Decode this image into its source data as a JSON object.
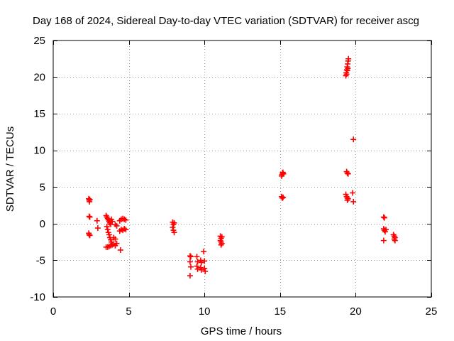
{
  "chart_data": {
    "type": "scatter",
    "title": "Day 168 of 2024, Sidereal Day-to-day VTEC variation (SDTVAR) for receiver ascg",
    "xlabel": "GPS time / hours",
    "ylabel": "SDTVAR / TECUs",
    "xlim": [
      0,
      25
    ],
    "ylim": [
      -10,
      25
    ],
    "xticks": [
      0,
      5,
      10,
      15,
      20,
      25
    ],
    "yticks": [
      -10,
      -5,
      0,
      5,
      10,
      15,
      20,
      25
    ],
    "xtick_labels": [
      "0",
      "5",
      "10",
      "15",
      "20",
      "25"
    ],
    "ytick_labels": [
      "-10",
      "-5",
      "0",
      "5",
      "10",
      "15",
      "20",
      "25"
    ],
    "grid": true,
    "marker": "+",
    "color": "#ff0000",
    "series": [
      {
        "name": "SDTVAR",
        "points": [
          [
            2.35,
            3.4
          ],
          [
            2.38,
            3.2
          ],
          [
            2.4,
            3.0
          ],
          [
            2.42,
            3.3
          ],
          [
            2.38,
            1.0
          ],
          [
            2.42,
            0.9
          ],
          [
            2.35,
            -1.3
          ],
          [
            2.38,
            -1.5
          ],
          [
            2.42,
            -1.6
          ],
          [
            2.9,
            0.4
          ],
          [
            2.95,
            -0.6
          ],
          [
            3.5,
            1.1
          ],
          [
            3.55,
            0.9
          ],
          [
            3.6,
            0.7
          ],
          [
            3.65,
            0.5
          ],
          [
            3.7,
            0.3
          ],
          [
            3.75,
            0.1
          ],
          [
            3.8,
            -0.1
          ],
          [
            3.55,
            -0.4
          ],
          [
            3.6,
            -0.8
          ],
          [
            3.65,
            -1.2
          ],
          [
            3.7,
            -1.5
          ],
          [
            3.75,
            -1.9
          ],
          [
            3.8,
            -2.2
          ],
          [
            3.85,
            -2.5
          ],
          [
            3.6,
            -3.2
          ],
          [
            3.7,
            -3.1
          ],
          [
            3.8,
            -3.0
          ],
          [
            3.9,
            -2.9
          ],
          [
            4.0,
            -2.8
          ],
          [
            4.1,
            -3.0
          ],
          [
            4.2,
            -2.7
          ],
          [
            3.5,
            -3.2
          ],
          [
            3.85,
            0.6
          ],
          [
            3.9,
            0.3
          ],
          [
            4.1,
            -0.1
          ],
          [
            4.2,
            -0.3
          ],
          [
            4.0,
            -1.9
          ],
          [
            4.1,
            -2.1
          ],
          [
            4.4,
            -1.0
          ],
          [
            4.5,
            -0.8
          ],
          [
            4.6,
            -0.9
          ],
          [
            4.7,
            -0.7
          ],
          [
            4.8,
            -0.8
          ],
          [
            4.4,
            0.4
          ],
          [
            4.5,
            0.6
          ],
          [
            4.6,
            0.7
          ],
          [
            4.7,
            0.6
          ],
          [
            4.8,
            0.5
          ],
          [
            4.45,
            -3.6
          ],
          [
            7.9,
            0.2
          ],
          [
            7.95,
            -0.1
          ],
          [
            8.0,
            0.1
          ],
          [
            7.9,
            -0.5
          ],
          [
            7.95,
            -0.9
          ],
          [
            8.0,
            -1.2
          ],
          [
            9.05,
            -4.4
          ],
          [
            9.1,
            -4.5
          ],
          [
            9.05,
            -5.2
          ],
          [
            9.1,
            -5.9
          ],
          [
            9.05,
            -7.1
          ],
          [
            9.5,
            -4.5
          ],
          [
            9.55,
            -5.2
          ],
          [
            9.5,
            -5.8
          ],
          [
            9.55,
            -6.2
          ],
          [
            9.75,
            -5.0
          ],
          [
            9.8,
            -5.3
          ],
          [
            9.75,
            -6.0
          ],
          [
            9.8,
            -6.3
          ],
          [
            9.95,
            -3.8
          ],
          [
            10.0,
            -5.1
          ],
          [
            10.0,
            -6.1
          ],
          [
            10.05,
            -6.5
          ],
          [
            11.05,
            -1.7
          ],
          [
            11.1,
            -2.0
          ],
          [
            11.15,
            -1.8
          ],
          [
            11.05,
            -2.3
          ],
          [
            11.1,
            -2.5
          ],
          [
            11.15,
            -2.7
          ],
          [
            11.1,
            -2.9
          ],
          [
            15.1,
            6.5
          ],
          [
            15.13,
            6.7
          ],
          [
            15.16,
            6.9
          ],
          [
            15.19,
            7.0
          ],
          [
            15.22,
            6.8
          ],
          [
            15.1,
            3.7
          ],
          [
            15.15,
            3.5
          ],
          [
            15.2,
            3.6
          ],
          [
            19.35,
            20.2
          ],
          [
            19.38,
            20.6
          ],
          [
            19.41,
            21.0
          ],
          [
            19.44,
            21.4
          ],
          [
            19.47,
            21.8
          ],
          [
            19.5,
            22.2
          ],
          [
            19.52,
            22.5
          ],
          [
            19.4,
            20.4
          ],
          [
            19.45,
            20.9
          ],
          [
            19.48,
            21.2
          ],
          [
            19.4,
            7.1
          ],
          [
            19.45,
            6.9
          ],
          [
            19.5,
            6.8
          ],
          [
            19.35,
            4.0
          ],
          [
            19.4,
            3.7
          ],
          [
            19.45,
            3.5
          ],
          [
            19.5,
            3.4
          ],
          [
            19.45,
            3.2
          ],
          [
            19.85,
            11.5
          ],
          [
            19.8,
            4.2
          ],
          [
            19.85,
            3.0
          ],
          [
            21.85,
            0.9
          ],
          [
            21.9,
            0.8
          ],
          [
            21.85,
            -0.7
          ],
          [
            21.9,
            -0.9
          ],
          [
            21.95,
            -1.1
          ],
          [
            22.0,
            -0.8
          ],
          [
            21.85,
            -2.3
          ],
          [
            22.5,
            -1.5
          ],
          [
            22.55,
            -1.7
          ],
          [
            22.6,
            -1.9
          ],
          [
            22.55,
            -2.1
          ],
          [
            22.6,
            -2.3
          ]
        ]
      }
    ]
  }
}
